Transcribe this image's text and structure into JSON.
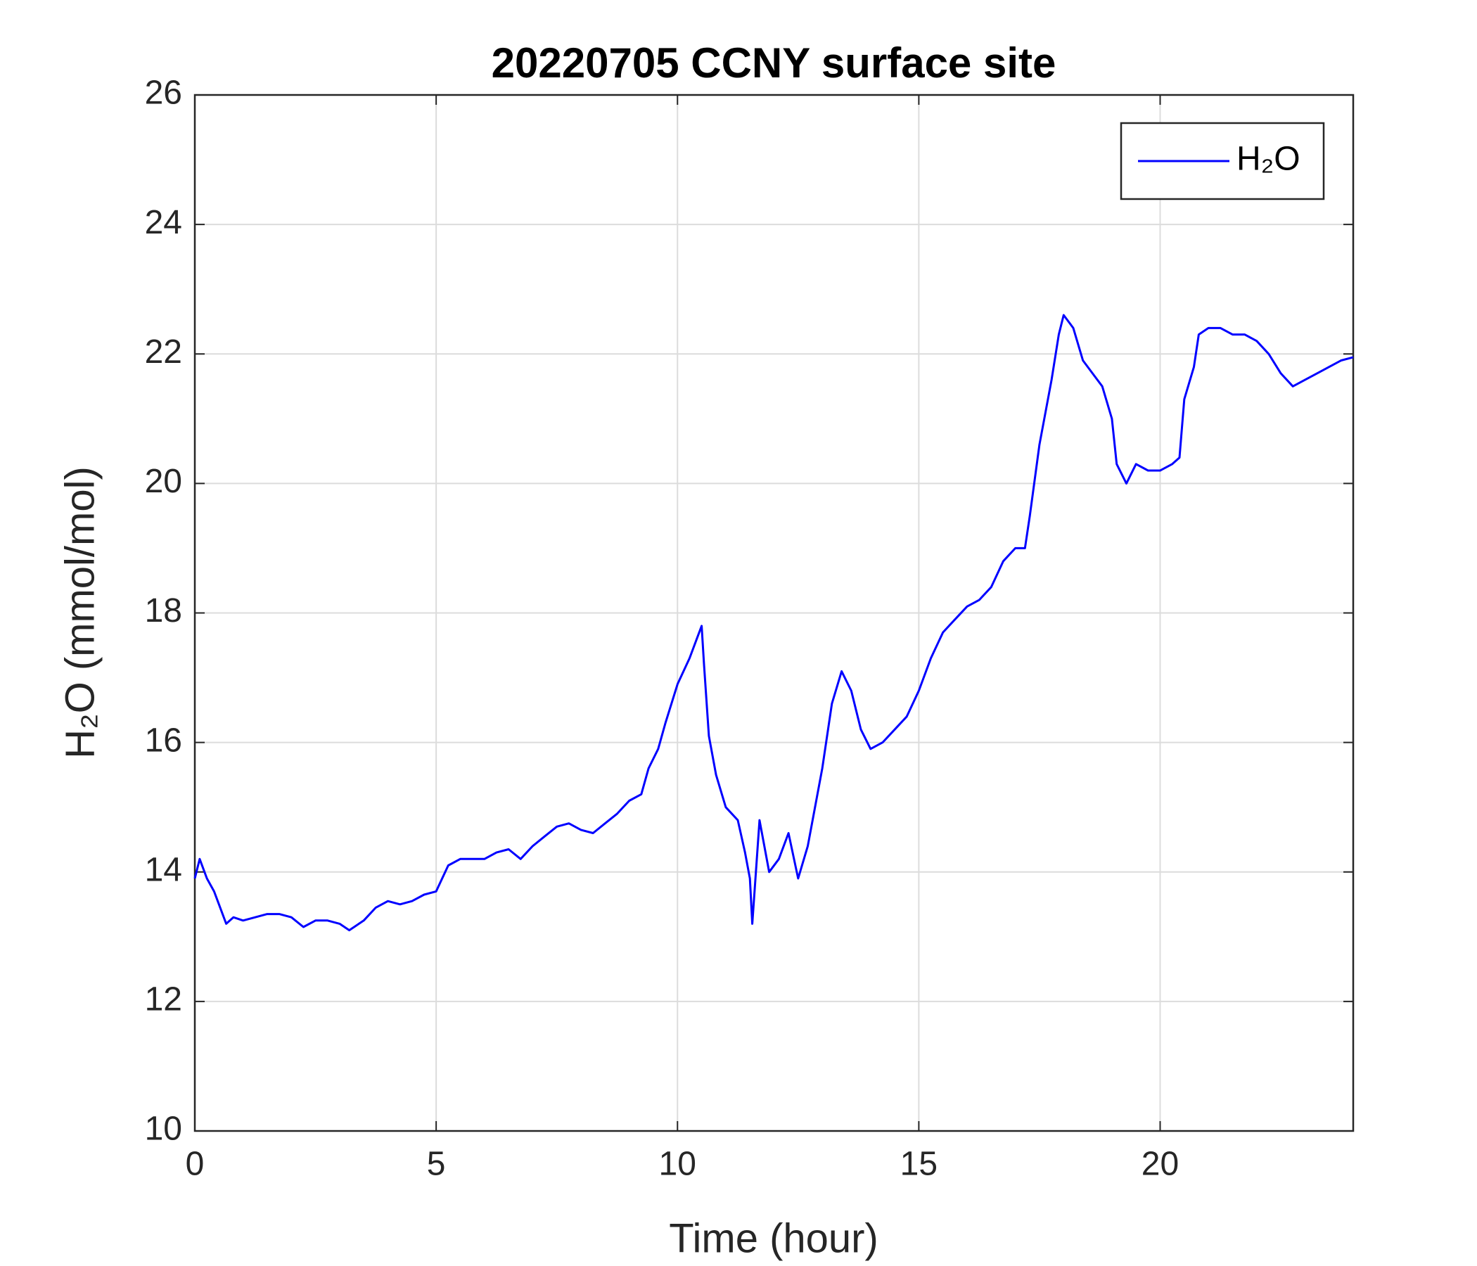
{
  "chart_data": {
    "type": "line",
    "title": "20220705 CCNY surface site",
    "xlabel": "Time (hour)",
    "ylabel": "H₂O (mmol/mol)",
    "xlim": [
      0,
      24
    ],
    "xticks": [
      0,
      5,
      10,
      15,
      20
    ],
    "ylim": [
      10,
      26
    ],
    "yticks": [
      10,
      12,
      14,
      16,
      18,
      20,
      22,
      24,
      26
    ],
    "grid": true,
    "legend": "upper right",
    "x": [
      0,
      0.1,
      0.25,
      0.4,
      0.5,
      0.65,
      0.8,
      1,
      1.25,
      1.5,
      1.75,
      2,
      2.25,
      2.5,
      2.75,
      3,
      3.2,
      3.5,
      3.75,
      4,
      4.25,
      4.5,
      4.75,
      5,
      5.25,
      5.5,
      6,
      6.25,
      6.5,
      6.75,
      7,
      7.25,
      7.5,
      7.75,
      8,
      8.25,
      8.5,
      8.75,
      9,
      9.25,
      9.4,
      9.6,
      9.75,
      10,
      10.25,
      10.4,
      10.5,
      10.55,
      10.65,
      10.8,
      11,
      11.25,
      11.4,
      11.5,
      11.55,
      11.7,
      11.9,
      12.1,
      12.3,
      12.5,
      12.7,
      12.85,
      13,
      13.2,
      13.4,
      13.6,
      13.8,
      14,
      14.25,
      14.5,
      14.75,
      15,
      15.25,
      15.5,
      15.75,
      16,
      16.25,
      16.5,
      16.75,
      17,
      17.2,
      17.3,
      17.5,
      17.75,
      17.9,
      18,
      18.2,
      18.4,
      18.6,
      18.8,
      19,
      19.1,
      19.3,
      19.5,
      19.75,
      20,
      20.25,
      20.4,
      20.5,
      20.7,
      20.8,
      21,
      21.25,
      21.5,
      21.75,
      22,
      22.25,
      22.5,
      22.75,
      23,
      23.25,
      23.5,
      23.75,
      24
    ],
    "series": [
      {
        "name": "H₂O",
        "color": "#0000ff",
        "values": [
          13.9,
          14.2,
          13.9,
          13.7,
          13.5,
          13.2,
          13.3,
          13.25,
          13.3,
          13.35,
          13.35,
          13.3,
          13.15,
          13.25,
          13.25,
          13.2,
          13.1,
          13.25,
          13.45,
          13.55,
          13.5,
          13.55,
          13.65,
          13.7,
          14.1,
          14.2,
          14.2,
          14.3,
          14.35,
          14.2,
          14.4,
          14.55,
          14.7,
          14.75,
          14.65,
          14.6,
          14.75,
          14.9,
          15.1,
          15.2,
          15.6,
          15.9,
          16.3,
          16.9,
          17.3,
          17.6,
          17.8,
          17.2,
          16.1,
          15.5,
          15.0,
          14.8,
          14.3,
          13.9,
          13.2,
          14.8,
          14.0,
          14.2,
          14.6,
          13.9,
          14.4,
          15.0,
          15.6,
          16.6,
          17.1,
          16.8,
          16.2,
          15.9,
          16.0,
          16.2,
          16.4,
          16.8,
          17.3,
          17.7,
          17.9,
          18.1,
          18.2,
          18.4,
          18.8,
          19.0,
          19.0,
          19.5,
          20.6,
          21.6,
          22.3,
          22.6,
          22.4,
          21.9,
          21.7,
          21.5,
          21.0,
          20.3,
          20.0,
          20.3,
          20.2,
          20.2,
          20.3,
          20.4,
          21.3,
          21.8,
          22.3,
          22.4,
          22.4,
          22.3,
          22.3,
          22.2,
          22.0,
          21.7,
          21.5,
          21.6,
          21.7,
          21.8,
          21.9,
          21.95
        ]
      }
    ]
  }
}
